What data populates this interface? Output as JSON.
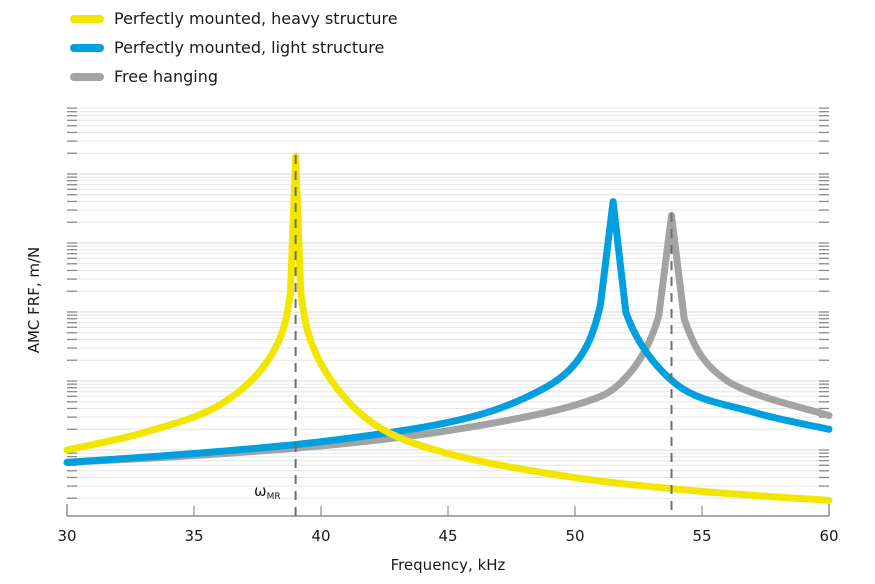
{
  "chart_data": {
    "type": "line",
    "title": "",
    "xlabel": "Frequency, kHz",
    "ylabel": "AMC FRF, m/N",
    "xlim": [
      30,
      60
    ],
    "x_ticks": [
      "30",
      "35",
      "40",
      "45",
      "50",
      "55",
      "60"
    ],
    "y_scale": "log",
    "y_ticks_labeled": false,
    "y_decades_visible": 6,
    "grid": true,
    "legend_position": "top-left",
    "annotations": [
      {
        "text": "ω",
        "subscript": "MR",
        "x": 39.0,
        "note": "dashed vertical line at yellow resonance"
      },
      {
        "text": "",
        "x": 53.8,
        "note": "dashed vertical line at gray resonance"
      }
    ],
    "series": [
      {
        "name": "Perfectly mounted, heavy structure",
        "color": "#f2e600",
        "resonance_khz": 39.0,
        "x": [
          30,
          33,
          36,
          38,
          38.8,
          39.0,
          39.2,
          40,
          42,
          45,
          50,
          55,
          60
        ],
        "y_rel_decades": [
          1.0,
          1.25,
          1.65,
          2.35,
          3.3,
          5.25,
          3.3,
          2.25,
          1.4,
          0.95,
          0.6,
          0.4,
          0.27
        ]
      },
      {
        "name": "Perfectly mounted, light structure",
        "color": "#009fdf",
        "resonance_khz": 51.5,
        "x": [
          30,
          35,
          40,
          45,
          48,
          50,
          51,
          51.5,
          52,
          54,
          57,
          60
        ],
        "y_rel_decades": [
          0.82,
          0.95,
          1.12,
          1.4,
          1.75,
          2.25,
          3.1,
          4.6,
          3.0,
          1.95,
          1.55,
          1.3
        ]
      },
      {
        "name": "Free hanging",
        "color": "#a3a3a3",
        "resonance_khz": 53.8,
        "x": [
          30,
          35,
          40,
          45,
          50,
          52,
          53.3,
          53.8,
          54.3,
          56,
          60
        ],
        "y_rel_decades": [
          0.82,
          0.92,
          1.06,
          1.28,
          1.65,
          2.05,
          2.95,
          4.4,
          2.9,
          2.0,
          1.5
        ]
      }
    ]
  },
  "legend": {
    "items": [
      {
        "label": "Perfectly mounted, heavy structure",
        "color": "#f2e600"
      },
      {
        "label": "Perfectly mounted, light structure",
        "color": "#009fdf"
      },
      {
        "label": "Free hanging",
        "color": "#a3a3a3"
      }
    ]
  },
  "axis": {
    "xlabel": "Frequency, kHz",
    "ylabel": "AMC FRF, m/N",
    "ticks": [
      "30",
      "35",
      "40",
      "45",
      "50",
      "55",
      "60"
    ],
    "annotation_symbol": "ω",
    "annotation_sub": "MR"
  }
}
